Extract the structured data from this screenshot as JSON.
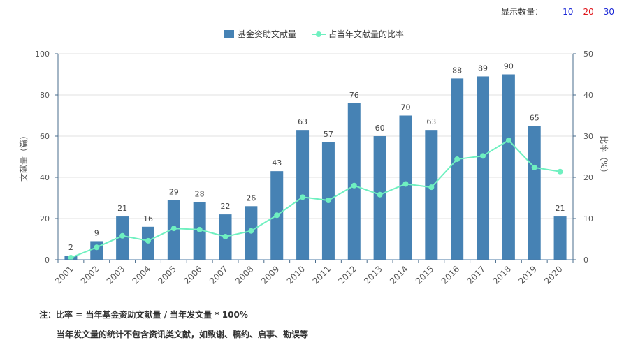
{
  "toolbar": {
    "label": "显示数量：",
    "options": [
      "10",
      "20",
      "30"
    ]
  },
  "colors": {
    "bar": "#4682b4",
    "line": "#6ff0c0",
    "grid": "#e0e0e0",
    "axis": "#4a6c8c"
  },
  "chart_data": {
    "type": "bar",
    "categories": [
      "2001",
      "2002",
      "2003",
      "2004",
      "2005",
      "2006",
      "2007",
      "2008",
      "2009",
      "2010",
      "2011",
      "2012",
      "2013",
      "2014",
      "2015",
      "2016",
      "2017",
      "2018",
      "2019",
      "2020"
    ],
    "series": [
      {
        "name": "基金资助文献量",
        "type": "bar",
        "axis": "left",
        "values": [
          2,
          9,
          21,
          16,
          29,
          28,
          22,
          26,
          43,
          63,
          57,
          76,
          60,
          70,
          63,
          88,
          89,
          90,
          65,
          21
        ]
      },
      {
        "name": "占当年文献量的比率",
        "type": "line",
        "axis": "right",
        "values": [
          0.5,
          3.0,
          5.8,
          4.6,
          7.6,
          7.3,
          5.6,
          7.0,
          10.8,
          15.2,
          14.4,
          18.0,
          15.8,
          18.4,
          17.6,
          24.4,
          25.2,
          29.0,
          22.4,
          21.4
        ]
      }
    ],
    "ylabel_left": "文献量（篇）",
    "ylabel_right": "比率（%）",
    "ylim_left": [
      0,
      100
    ],
    "ylim_right": [
      0,
      50
    ],
    "yticks_left": [
      "0",
      "20",
      "40",
      "60",
      "80",
      "100"
    ],
    "yticks_right": [
      "0",
      "10",
      "20",
      "30",
      "40",
      "50"
    ],
    "grid": true,
    "legend": "top-center"
  },
  "notes": {
    "line1": "注：比率 = 当年基金资助文献量 / 当年发文量 * 100%",
    "line2": "当年发文量的统计不包含资讯类文献，如致谢、稿约、启事、勘误等"
  }
}
